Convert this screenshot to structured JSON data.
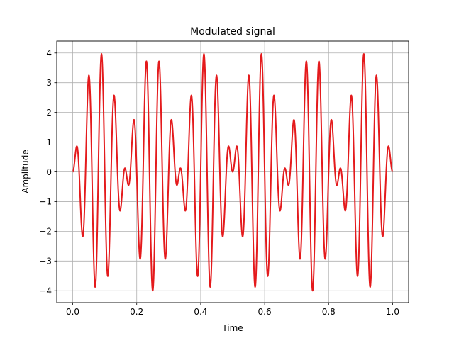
{
  "chart_data": {
    "type": "line",
    "title": "Modulated signal",
    "xlabel": "Time",
    "ylabel": "Amplitude",
    "xlim": [
      -0.05,
      1.05
    ],
    "ylim": [
      -4.4,
      4.4
    ],
    "xticks": [
      0.0,
      0.2,
      0.4,
      0.6,
      0.8,
      1.0
    ],
    "xtick_labels": [
      "0.0",
      "0.2",
      "0.4",
      "0.6",
      "0.8",
      "1.0"
    ],
    "yticks": [
      -4,
      -3,
      -2,
      -1,
      0,
      1,
      2,
      3,
      4
    ],
    "ytick_labels": [
      "−4",
      "−3",
      "−2",
      "−1",
      "0",
      "1",
      "2",
      "3",
      "4"
    ],
    "grid": true,
    "line_color": "#e41a1c",
    "series": [
      {
        "function": "4 * sin(2*pi*3*t) * sin(2*pi*25*t)",
        "x_range": [
          0,
          1
        ],
        "carrier_frequency": 25,
        "modulation_frequency": 3,
        "amplitude": 4
      }
    ]
  }
}
